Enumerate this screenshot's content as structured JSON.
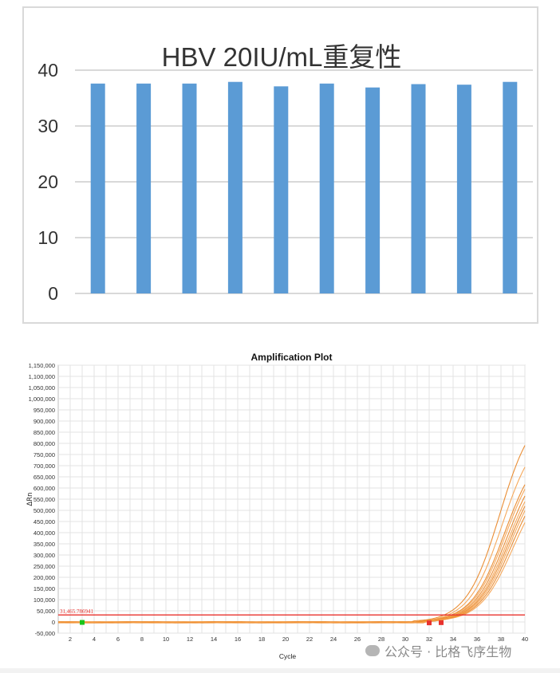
{
  "colors": {
    "bar": "#5b9bd5",
    "curve": "#f5a04a",
    "curve_dark": "#e8821f",
    "threshold": "#e8322e",
    "grid_top": "#d9d9d9",
    "grid_bottom": "#e3e3e3"
  },
  "chart_data": [
    {
      "type": "bar",
      "title": "HBV 20IU/mL重复性",
      "categories": [
        "",
        "",
        "",
        "",
        "",
        "",
        "",
        "",
        "",
        ""
      ],
      "values": [
        37.6,
        37.6,
        37.6,
        37.9,
        37.1,
        37.6,
        36.9,
        37.5,
        37.4,
        37.9
      ],
      "ylim": [
        0,
        40
      ],
      "yticks": [
        "0",
        "10",
        "20",
        "30",
        "40"
      ],
      "grid": true
    },
    {
      "type": "line",
      "title": "Amplification Plot",
      "xlabel": "Cycle",
      "ylabel": "ΔRn",
      "xlim": [
        1,
        40
      ],
      "ylim": [
        -50000,
        1150000
      ],
      "xticks": [
        "2",
        "4",
        "6",
        "8",
        "10",
        "12",
        "14",
        "16",
        "18",
        "20",
        "22",
        "24",
        "26",
        "28",
        "30",
        "32",
        "34",
        "36",
        "38",
        "40"
      ],
      "yticks": [
        "-50,000",
        "0",
        "50,000",
        "100,000",
        "150,000",
        "200,000",
        "250,000",
        "300,000",
        "350,000",
        "400,000",
        "450,000",
        "500,000",
        "550,000",
        "600,000",
        "650,000",
        "700,000",
        "750,000",
        "800,000",
        "850,000",
        "900,000",
        "950,000",
        "1,000,000",
        "1,050,000",
        "1,100,000",
        "1,150,000"
      ],
      "threshold": 31465.786941,
      "threshold_label": "31,465.786941",
      "grid": true,
      "series_end_values": [
        715000,
        645000,
        590000,
        580000,
        560000,
        545000,
        535000,
        525000,
        510000,
        490000
      ],
      "series_ct": [
        34.6,
        34.8,
        35.0,
        35.1,
        35.2,
        35.3,
        35.4,
        35.5,
        35.6,
        35.7
      ],
      "baseline_markers": [
        {
          "x": 3,
          "y": -2000,
          "color": "#19c419"
        },
        {
          "x": 32,
          "y": -4000,
          "color": "#e8322e"
        },
        {
          "x": 33,
          "y": -3000,
          "color": "#e8322e"
        }
      ]
    }
  ],
  "watermark": {
    "text": "公众号 · 比格飞序生物"
  }
}
